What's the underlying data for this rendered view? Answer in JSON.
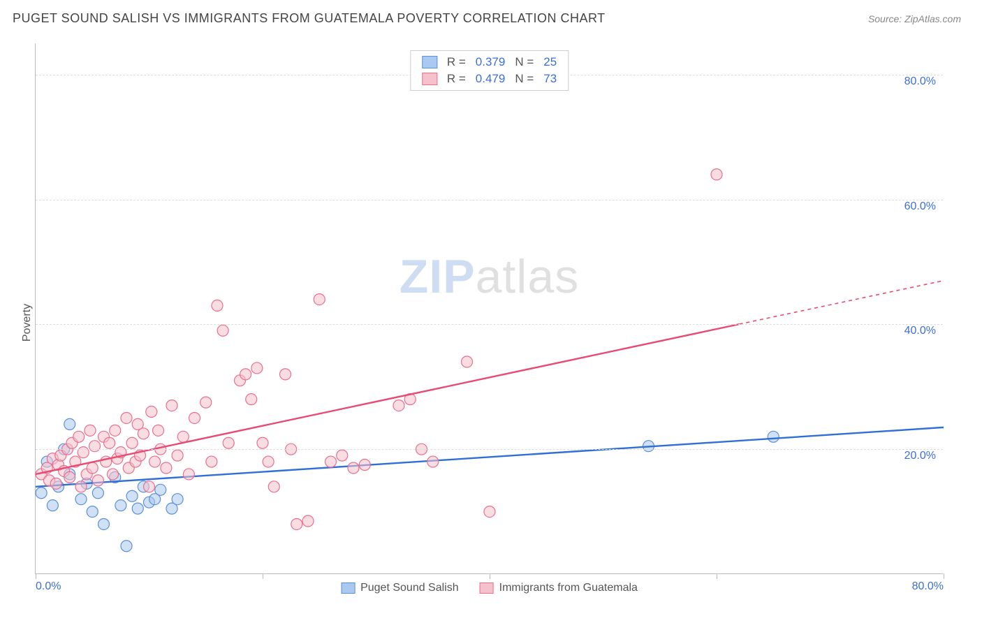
{
  "header": {
    "title": "PUGET SOUND SALISH VS IMMIGRANTS FROM GUATEMALA POVERTY CORRELATION CHART",
    "source_label": "Source: ZipAtlas.com"
  },
  "chart": {
    "type": "scatter",
    "ylabel": "Poverty",
    "xlim": [
      0,
      80
    ],
    "ylim": [
      0,
      85
    ],
    "xtick_positions": [
      0,
      20,
      40,
      60,
      80
    ],
    "xtick_labels": [
      "0.0%",
      "",
      "",
      "",
      "80.0%"
    ],
    "ytick_positions": [
      20,
      40,
      60,
      80
    ],
    "ytick_labels": [
      "20.0%",
      "40.0%",
      "60.0%",
      "80.0%"
    ],
    "grid_color": "#dddddd",
    "axis_color": "#bbbbbb",
    "background_color": "#ffffff",
    "tick_label_color": "#3b6fd6",
    "watermark": {
      "zip": "ZIP",
      "atlas": "atlas"
    },
    "marker_radius": 8,
    "marker_opacity": 0.55,
    "series": [
      {
        "name": "Puget Sound Salish",
        "color_fill": "#a9c9ef",
        "color_stroke": "#5b8fd6",
        "line_color": "#2f6fd6",
        "R": "0.379",
        "N": "25",
        "trend": {
          "x1": 0,
          "y1": 14,
          "x2": 80,
          "y2": 23.5,
          "dashed_from_x": null
        },
        "points": [
          [
            0.5,
            13
          ],
          [
            1,
            18
          ],
          [
            1.5,
            11
          ],
          [
            2,
            14
          ],
          [
            2.5,
            20
          ],
          [
            3,
            16
          ],
          [
            3,
            24
          ],
          [
            4,
            12
          ],
          [
            4.5,
            14.5
          ],
          [
            5,
            10
          ],
          [
            5.5,
            13
          ],
          [
            6,
            8
          ],
          [
            7,
            15.5
          ],
          [
            7.5,
            11
          ],
          [
            8,
            4.5
          ],
          [
            8.5,
            12.5
          ],
          [
            9,
            10.5
          ],
          [
            9.5,
            14
          ],
          [
            10,
            11.5
          ],
          [
            10.5,
            12
          ],
          [
            11,
            13.5
          ],
          [
            12,
            10.5
          ],
          [
            12.5,
            12
          ],
          [
            54,
            20.5
          ],
          [
            65,
            22
          ]
        ]
      },
      {
        "name": "Immigrants from Guatemala",
        "color_fill": "#f4c1cc",
        "color_stroke": "#e96f8d",
        "line_color": "#e84a72",
        "R": "0.479",
        "N": "73",
        "trend": {
          "x1": 0,
          "y1": 16,
          "x2": 80,
          "y2": 47,
          "dashed_from_x": 62
        },
        "points": [
          [
            0.5,
            16
          ],
          [
            1,
            17
          ],
          [
            1.2,
            15
          ],
          [
            1.5,
            18.5
          ],
          [
            1.8,
            14.5
          ],
          [
            2,
            17.5
          ],
          [
            2.2,
            19
          ],
          [
            2.5,
            16.5
          ],
          [
            2.8,
            20
          ],
          [
            3,
            15.5
          ],
          [
            3.2,
            21
          ],
          [
            3.5,
            18
          ],
          [
            3.8,
            22
          ],
          [
            4,
            14
          ],
          [
            4.2,
            19.5
          ],
          [
            4.5,
            16
          ],
          [
            4.8,
            23
          ],
          [
            5,
            17
          ],
          [
            5.2,
            20.5
          ],
          [
            5.5,
            15
          ],
          [
            6,
            22
          ],
          [
            6.2,
            18
          ],
          [
            6.5,
            21
          ],
          [
            6.8,
            16
          ],
          [
            7,
            23
          ],
          [
            7.2,
            18.5
          ],
          [
            7.5,
            19.5
          ],
          [
            8,
            25
          ],
          [
            8.2,
            17
          ],
          [
            8.5,
            21
          ],
          [
            8.8,
            18
          ],
          [
            9,
            24
          ],
          [
            9.2,
            19
          ],
          [
            9.5,
            22.5
          ],
          [
            10,
            14
          ],
          [
            10.2,
            26
          ],
          [
            10.5,
            18
          ],
          [
            10.8,
            23
          ],
          [
            11,
            20
          ],
          [
            11.5,
            17
          ],
          [
            12,
            27
          ],
          [
            12.5,
            19
          ],
          [
            13,
            22
          ],
          [
            13.5,
            16
          ],
          [
            14,
            25
          ],
          [
            15,
            27.5
          ],
          [
            15.5,
            18
          ],
          [
            16,
            43
          ],
          [
            16.5,
            39
          ],
          [
            17,
            21
          ],
          [
            18,
            31
          ],
          [
            18.5,
            32
          ],
          [
            19,
            28
          ],
          [
            19.5,
            33
          ],
          [
            20,
            21
          ],
          [
            20.5,
            18
          ],
          [
            21,
            14
          ],
          [
            22,
            32
          ],
          [
            22.5,
            20
          ],
          [
            23,
            8
          ],
          [
            24,
            8.5
          ],
          [
            25,
            44
          ],
          [
            26,
            18
          ],
          [
            27,
            19
          ],
          [
            28,
            17
          ],
          [
            29,
            17.5
          ],
          [
            32,
            27
          ],
          [
            33,
            28
          ],
          [
            34,
            20
          ],
          [
            35,
            18
          ],
          [
            38,
            34
          ],
          [
            40,
            10
          ],
          [
            60,
            64
          ]
        ]
      }
    ],
    "legend_top": {
      "rows": [
        {
          "swatch_fill": "#a9c9ef",
          "swatch_stroke": "#5b8fd6",
          "r_label": "R =",
          "r_value": "0.379",
          "n_label": "N =",
          "n_value": "25"
        },
        {
          "swatch_fill": "#f4c1cc",
          "swatch_stroke": "#e96f8d",
          "r_label": "R =",
          "r_value": "0.479",
          "n_label": "N =",
          "n_value": "73"
        }
      ]
    },
    "legend_bottom": [
      {
        "swatch_fill": "#a9c9ef",
        "swatch_stroke": "#5b8fd6",
        "label": "Puget Sound Salish"
      },
      {
        "swatch_fill": "#f4c1cc",
        "swatch_stroke": "#e96f8d",
        "label": "Immigrants from Guatemala"
      }
    ]
  }
}
